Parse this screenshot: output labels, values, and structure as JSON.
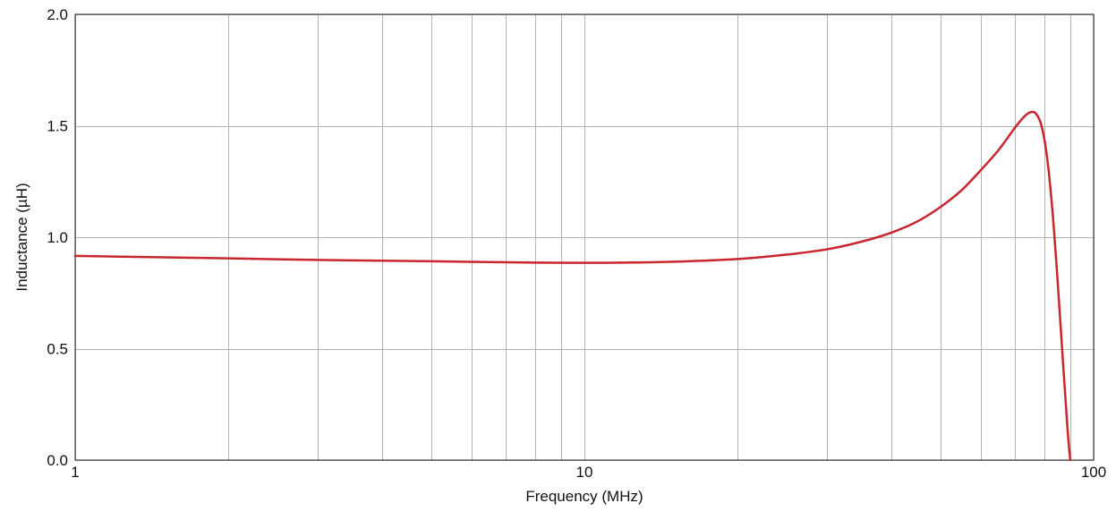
{
  "chart_data": {
    "type": "line",
    "title": "",
    "xlabel": "Frequency (MHz)",
    "ylabel": "Inductance (µH)",
    "x_scale": "log",
    "xlim": [
      1,
      100
    ],
    "ylim": [
      0,
      2.0
    ],
    "x_ticks": [
      {
        "value": 1,
        "label": "1"
      },
      {
        "value": 10,
        "label": "10"
      },
      {
        "value": 100,
        "label": "100"
      }
    ],
    "x_minor_gridlines": [
      2,
      3,
      4,
      5,
      6,
      7,
      8,
      9,
      20,
      30,
      40,
      50,
      60,
      70,
      80,
      90
    ],
    "y_ticks": [
      {
        "value": 0,
        "label": "0.0"
      },
      {
        "value": 0.5,
        "label": "0.5"
      },
      {
        "value": 1.0,
        "label": "1.0"
      },
      {
        "value": 1.5,
        "label": "1.5"
      },
      {
        "value": 2.0,
        "label": "2.0"
      }
    ],
    "grid": true,
    "legend": "none",
    "series": [
      {
        "color": "#c8262c",
        "x": [
          1,
          2,
          3,
          5,
          8,
          10,
          12,
          15,
          20,
          25,
          30,
          35,
          40,
          45,
          50,
          55,
          60,
          65,
          70,
          73,
          75,
          77,
          79,
          81,
          83,
          85,
          87,
          89,
          90
        ],
        "y": [
          0.916,
          0.905,
          0.898,
          0.892,
          0.886,
          0.885,
          0.886,
          0.89,
          0.902,
          0.922,
          0.946,
          0.98,
          1.02,
          1.07,
          1.135,
          1.21,
          1.3,
          1.39,
          1.49,
          1.54,
          1.56,
          1.555,
          1.5,
          1.36,
          1.12,
          0.8,
          0.45,
          0.12,
          0.0
        ]
      }
    ]
  }
}
